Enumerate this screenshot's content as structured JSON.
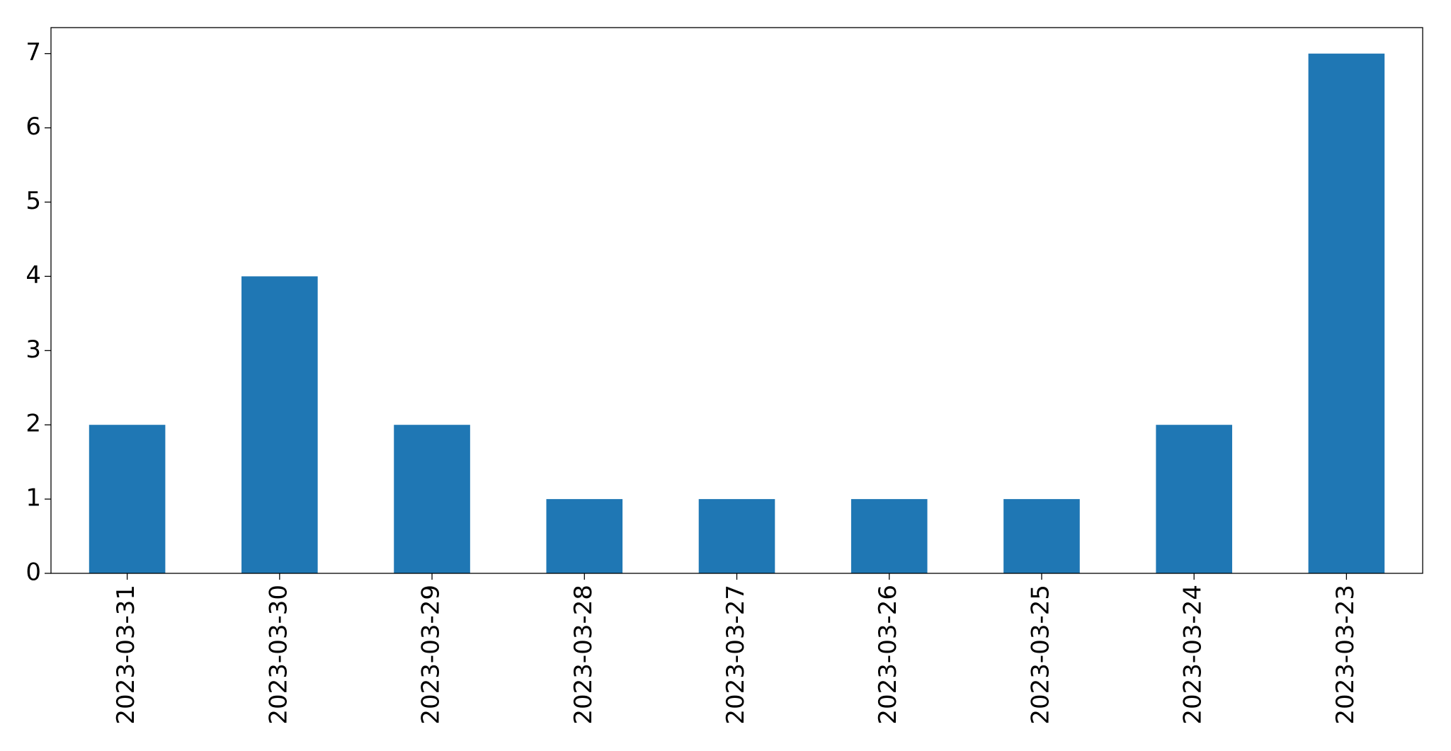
{
  "chart_data": {
    "type": "bar",
    "categories": [
      "2023-03-31",
      "2023-03-30",
      "2023-03-29",
      "2023-03-28",
      "2023-03-27",
      "2023-03-26",
      "2023-03-25",
      "2023-03-24",
      "2023-03-23"
    ],
    "values": [
      2,
      4,
      2,
      1,
      1,
      1,
      1,
      2,
      7
    ],
    "color": "#1f77b4",
    "ylim": [
      0,
      7.35
    ],
    "yticks": [
      0,
      1,
      2,
      3,
      4,
      5,
      6,
      7
    ],
    "grid": false
  }
}
